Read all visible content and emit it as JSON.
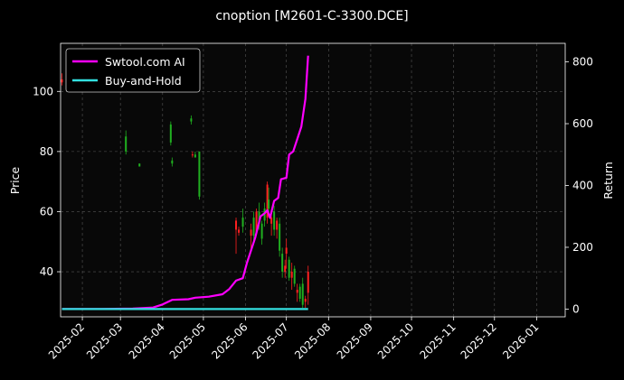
{
  "chart_data": {
    "type": "candlestick+line",
    "title": "cnoption [M2601-C-3300.DCE]",
    "ylabel_left": "Price",
    "ylabel_right": "Return",
    "left_yticks": [
      40,
      60,
      80,
      100
    ],
    "right_yticks": [
      0,
      200,
      400,
      600,
      800
    ],
    "left_ylim": [
      25,
      116
    ],
    "right_ylim": [
      -25,
      860
    ],
    "x_ticks": [
      "2025-02",
      "2025-03",
      "2025-04",
      "2025-05",
      "2025-06",
      "2025-07",
      "2025-08",
      "2025-09",
      "2025-10",
      "2025-11",
      "2025-12",
      "2026-01"
    ],
    "xlim": [
      "2025-01-16",
      "2026-01-22"
    ],
    "grid": true,
    "legend_position": "top-left",
    "colors": {
      "strategy": "#ff00ff",
      "benchmark": "#33e0e0",
      "up": "#ff2020",
      "down": "#20b020",
      "background": "#000000",
      "grid": "#555555"
    },
    "series": [
      {
        "name": "Swtool.com AI",
        "axis": "right",
        "points": [
          [
            "2025-01-17",
            0
          ],
          [
            "2025-02-15",
            0
          ],
          [
            "2025-03-10",
            2
          ],
          [
            "2025-03-25",
            5
          ],
          [
            "2025-04-01",
            15
          ],
          [
            "2025-04-08",
            30
          ],
          [
            "2025-04-20",
            32
          ],
          [
            "2025-04-25",
            37
          ],
          [
            "2025-05-05",
            40
          ],
          [
            "2025-05-15",
            48
          ],
          [
            "2025-05-20",
            65
          ],
          [
            "2025-05-25",
            92
          ],
          [
            "2025-05-30",
            100
          ],
          [
            "2025-06-02",
            150
          ],
          [
            "2025-06-08",
            230
          ],
          [
            "2025-06-12",
            300
          ],
          [
            "2025-06-15",
            310
          ],
          [
            "2025-06-17",
            320
          ],
          [
            "2025-06-19",
            295
          ],
          [
            "2025-06-22",
            350
          ],
          [
            "2025-06-25",
            360
          ],
          [
            "2025-06-27",
            420
          ],
          [
            "2025-07-01",
            425
          ],
          [
            "2025-07-03",
            500
          ],
          [
            "2025-07-06",
            510
          ],
          [
            "2025-07-09",
            550
          ],
          [
            "2025-07-12",
            590
          ],
          [
            "2025-07-15",
            680
          ],
          [
            "2025-07-17",
            820
          ]
        ]
      },
      {
        "name": "Buy-and-Hold",
        "axis": "right",
        "points": [
          [
            "2025-01-17",
            0
          ],
          [
            "2025-07-17",
            0
          ]
        ]
      }
    ],
    "candles": [
      [
        "2025-01-17",
        103,
        106,
        102,
        104
      ],
      [
        "2025-03-05",
        85,
        87,
        79,
        80
      ],
      [
        "2025-03-15",
        76,
        76,
        75,
        75
      ],
      [
        "2025-04-07",
        89,
        90,
        82,
        83
      ],
      [
        "2025-04-08",
        77,
        78,
        75,
        76
      ],
      [
        "2025-04-22",
        91,
        92,
        89,
        90
      ],
      [
        "2025-04-23",
        79,
        80,
        78,
        79
      ],
      [
        "2025-04-25",
        79,
        80,
        78,
        78
      ],
      [
        "2025-04-28",
        80,
        80,
        64,
        65
      ],
      [
        "2025-05-25",
        54,
        58,
        46,
        57
      ],
      [
        "2025-05-27",
        53,
        55,
        52,
        54
      ],
      [
        "2025-05-30",
        58,
        61,
        53,
        55
      ],
      [
        "2025-06-05",
        52,
        56,
        47,
        54
      ],
      [
        "2025-06-07",
        58,
        60,
        50,
        52
      ],
      [
        "2025-06-09",
        53,
        61,
        52,
        60
      ],
      [
        "2025-06-11",
        60,
        63,
        54,
        56
      ],
      [
        "2025-06-13",
        56,
        57,
        49,
        51
      ],
      [
        "2025-06-15",
        61,
        63,
        55,
        57
      ],
      [
        "2025-06-17",
        58,
        70,
        56,
        69
      ],
      [
        "2025-06-18",
        64,
        68,
        60,
        61
      ],
      [
        "2025-06-20",
        56,
        60,
        52,
        58
      ],
      [
        "2025-06-22",
        60,
        62,
        52,
        54
      ],
      [
        "2025-06-24",
        54,
        58,
        51,
        57
      ],
      [
        "2025-06-26",
        56,
        58,
        45,
        47
      ],
      [
        "2025-06-28",
        46,
        48,
        38,
        40
      ],
      [
        "2025-06-30",
        40,
        44,
        38,
        42
      ],
      [
        "2025-07-01",
        46,
        51,
        41,
        48
      ],
      [
        "2025-07-03",
        44,
        45,
        37,
        38
      ],
      [
        "2025-07-05",
        38,
        43,
        34,
        40
      ],
      [
        "2025-07-07",
        41,
        42,
        35,
        36
      ],
      [
        "2025-07-09",
        33,
        36,
        30,
        34
      ],
      [
        "2025-07-11",
        35,
        36,
        30,
        31
      ],
      [
        "2025-07-13",
        36,
        38,
        28,
        29
      ],
      [
        "2025-07-15",
        30,
        32,
        28,
        31
      ],
      [
        "2025-07-17",
        33,
        42,
        29,
        40
      ]
    ]
  }
}
